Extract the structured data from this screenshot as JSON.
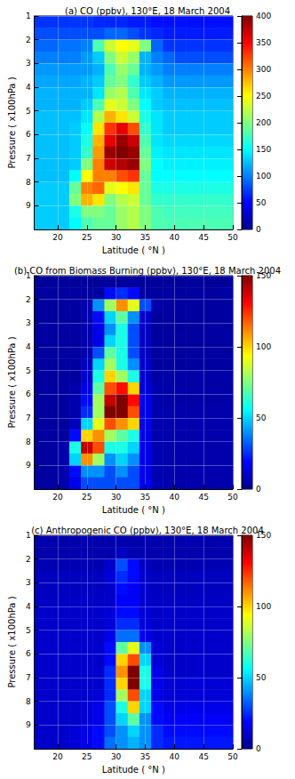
{
  "chart_data": [
    {
      "type": "heatmap",
      "title": "(a) CO (ppbv), 130°E, 18 March 2004",
      "x_label": "Latitude ( °N )",
      "y_label": "Pressure ( x100hPa )",
      "xlim": [
        16,
        50
      ],
      "xticks": [
        20,
        25,
        30,
        35,
        40,
        45,
        50
      ],
      "ylim": [
        1,
        10
      ],
      "yticks": [
        1,
        2,
        3,
        4,
        5,
        6,
        7,
        8,
        9
      ],
      "grid": true,
      "x_edges": [
        16,
        18,
        20,
        22,
        24,
        26,
        28,
        30,
        32,
        34,
        36,
        38,
        40,
        42,
        44,
        46,
        48,
        50
      ],
      "y_edges": [
        1,
        1.5,
        2,
        2.5,
        3,
        3.5,
        4,
        4.5,
        5,
        5.5,
        6,
        6.5,
        7,
        7.5,
        8,
        8.5,
        9,
        9.5,
        10
      ],
      "cells": [
        [
          70,
          70,
          70,
          70,
          70,
          65,
          65,
          65,
          60,
          60,
          55,
          55,
          55,
          55,
          55,
          55,
          55
        ],
        [
          80,
          80,
          80,
          80,
          80,
          80,
          90,
          90,
          80,
          70,
          65,
          60,
          60,
          60,
          60,
          60,
          60
        ],
        [
          90,
          90,
          95,
          95,
          100,
          180,
          230,
          250,
          240,
          200,
          90,
          70,
          70,
          70,
          70,
          70,
          70
        ],
        [
          100,
          100,
          100,
          100,
          110,
          130,
          200,
          230,
          210,
          120,
          100,
          90,
          80,
          80,
          80,
          80,
          80
        ],
        [
          110,
          110,
          110,
          110,
          110,
          120,
          180,
          210,
          190,
          120,
          110,
          100,
          100,
          100,
          100,
          100,
          100
        ],
        [
          115,
          115,
          115,
          115,
          120,
          130,
          190,
          200,
          170,
          130,
          120,
          110,
          110,
          110,
          110,
          110,
          110
        ],
        [
          120,
          120,
          120,
          120,
          120,
          140,
          210,
          220,
          180,
          140,
          130,
          120,
          120,
          120,
          120,
          120,
          120
        ],
        [
          120,
          120,
          120,
          120,
          130,
          180,
          240,
          230,
          200,
          150,
          130,
          125,
          125,
          125,
          125,
          125,
          125
        ],
        [
          125,
          125,
          125,
          125,
          140,
          220,
          280,
          260,
          230,
          160,
          140,
          130,
          130,
          130,
          130,
          130,
          130
        ],
        [
          125,
          125,
          125,
          130,
          150,
          260,
          330,
          360,
          320,
          170,
          140,
          130,
          130,
          130,
          130,
          130,
          130
        ],
        [
          125,
          125,
          125,
          130,
          160,
          280,
          360,
          390,
          370,
          180,
          140,
          135,
          135,
          135,
          135,
          135,
          135
        ],
        [
          125,
          125,
          125,
          130,
          170,
          290,
          390,
          400,
          390,
          190,
          145,
          140,
          140,
          140,
          140,
          140,
          140
        ],
        [
          125,
          125,
          125,
          130,
          200,
          300,
          370,
          380,
          390,
          200,
          150,
          145,
          145,
          145,
          145,
          145,
          145
        ],
        [
          125,
          125,
          125,
          150,
          250,
          300,
          300,
          320,
          330,
          190,
          150,
          150,
          150,
          150,
          150,
          150,
          150
        ],
        [
          130,
          130,
          130,
          190,
          300,
          310,
          240,
          250,
          260,
          190,
          160,
          160,
          160,
          160,
          160,
          160,
          160
        ],
        [
          130,
          130,
          130,
          200,
          280,
          260,
          200,
          220,
          230,
          190,
          170,
          170,
          170,
          170,
          170,
          170,
          170
        ],
        [
          130,
          130,
          130,
          160,
          200,
          200,
          190,
          210,
          220,
          200,
          180,
          175,
          175,
          175,
          175,
          175,
          175
        ],
        [
          130,
          130,
          130,
          150,
          180,
          190,
          190,
          210,
          220,
          200,
          180,
          180,
          180,
          180,
          180,
          180,
          180
        ]
      ],
      "colorbar_range": [
        0,
        400
      ],
      "colorbar_ticks": [
        0,
        50,
        100,
        150,
        200,
        250,
        300,
        350,
        400
      ]
    },
    {
      "type": "heatmap",
      "title": "(b) CO from Biomass Burning (ppbv), 130°E, 18 March 2004",
      "x_label": "Latitude ( °N )",
      "y_label": "Pressure ( x100hPa )",
      "xlim": [
        16,
        50
      ],
      "xticks": [
        20,
        25,
        30,
        35,
        40,
        45,
        50
      ],
      "ylim": [
        1,
        10
      ],
      "yticks": [
        1,
        2,
        3,
        4,
        5,
        6,
        7,
        8,
        9
      ],
      "grid": true,
      "x_edges": [
        16,
        18,
        20,
        22,
        24,
        26,
        28,
        30,
        32,
        34,
        36,
        38,
        40,
        42,
        44,
        46,
        48,
        50
      ],
      "y_edges": [
        1,
        1.5,
        2,
        2.5,
        3,
        3.5,
        4,
        4.5,
        5,
        5.5,
        6,
        6.5,
        7,
        7.5,
        8,
        8.5,
        9,
        9.5,
        10
      ],
      "cells": [
        [
          2,
          2,
          2,
          2,
          2,
          2,
          2,
          2,
          2,
          2,
          2,
          2,
          2,
          2,
          2,
          2,
          2
        ],
        [
          3,
          3,
          3,
          3,
          3,
          3,
          20,
          25,
          20,
          3,
          3,
          3,
          3,
          3,
          3,
          3,
          3
        ],
        [
          3,
          3,
          3,
          3,
          5,
          40,
          80,
          110,
          90,
          30,
          5,
          3,
          3,
          3,
          3,
          3,
          3
        ],
        [
          3,
          3,
          3,
          3,
          5,
          20,
          50,
          70,
          40,
          10,
          3,
          3,
          3,
          3,
          3,
          3,
          3
        ],
        [
          3,
          3,
          3,
          3,
          5,
          15,
          40,
          60,
          30,
          8,
          3,
          3,
          3,
          3,
          3,
          3,
          3
        ],
        [
          3,
          3,
          3,
          3,
          5,
          15,
          50,
          60,
          30,
          8,
          3,
          3,
          3,
          3,
          3,
          3,
          3
        ],
        [
          3,
          3,
          3,
          3,
          5,
          30,
          70,
          60,
          30,
          8,
          3,
          3,
          3,
          3,
          3,
          3,
          3
        ],
        [
          3,
          3,
          3,
          3,
          8,
          50,
          80,
          60,
          40,
          10,
          3,
          3,
          3,
          3,
          3,
          3,
          3
        ],
        [
          3,
          3,
          3,
          3,
          10,
          60,
          100,
          80,
          60,
          10,
          4,
          4,
          4,
          4,
          4,
          4,
          4
        ],
        [
          3,
          3,
          3,
          5,
          15,
          70,
          120,
          130,
          100,
          12,
          5,
          4,
          4,
          4,
          4,
          4,
          4
        ],
        [
          3,
          3,
          3,
          5,
          20,
          80,
          140,
          150,
          130,
          15,
          5,
          4,
          4,
          4,
          4,
          4,
          4
        ],
        [
          3,
          3,
          3,
          5,
          25,
          80,
          150,
          150,
          120,
          15,
          5,
          5,
          5,
          5,
          5,
          5,
          5
        ],
        [
          3,
          3,
          3,
          8,
          50,
          90,
          120,
          110,
          100,
          15,
          5,
          5,
          5,
          5,
          5,
          5,
          5
        ],
        [
          3,
          3,
          3,
          20,
          100,
          110,
          80,
          70,
          60,
          15,
          5,
          5,
          5,
          5,
          5,
          5,
          5
        ],
        [
          3,
          3,
          5,
          60,
          140,
          120,
          60,
          60,
          50,
          15,
          6,
          5,
          5,
          5,
          5,
          5,
          5
        ],
        [
          3,
          3,
          5,
          50,
          110,
          80,
          40,
          50,
          40,
          15,
          6,
          5,
          5,
          5,
          5,
          5,
          5
        ],
        [
          3,
          3,
          5,
          20,
          40,
          40,
          30,
          40,
          30,
          15,
          6,
          5,
          5,
          5,
          5,
          5,
          5
        ],
        [
          3,
          3,
          5,
          15,
          30,
          30,
          30,
          30,
          30,
          15,
          6,
          5,
          5,
          5,
          5,
          5,
          5
        ]
      ],
      "colorbar_range": [
        0,
        150
      ],
      "colorbar_ticks": [
        0,
        50,
        100,
        150
      ]
    },
    {
      "type": "heatmap",
      "title": "(c) Anthropogenic CO (ppbv), 130°E, 18 March 2004",
      "x_label": "Latitude ( °N )",
      "y_label": "Pressure ( x100hPa )",
      "xlim": [
        16,
        50
      ],
      "xticks": [
        20,
        25,
        30,
        35,
        40,
        45,
        50
      ],
      "ylim": [
        1,
        10
      ],
      "yticks": [
        1,
        2,
        3,
        4,
        5,
        6,
        7,
        8,
        9
      ],
      "grid": true,
      "x_edges": [
        16,
        18,
        20,
        22,
        24,
        26,
        28,
        30,
        32,
        34,
        36,
        38,
        40,
        42,
        44,
        46,
        48,
        50
      ],
      "y_edges": [
        1,
        1.5,
        2,
        2.5,
        3,
        3.5,
        4,
        4.5,
        5,
        5.5,
        6,
        6.5,
        7,
        7.5,
        8,
        8.5,
        9,
        9.5,
        10
      ],
      "cells": [
        [
          5,
          5,
          5,
          5,
          5,
          5,
          5,
          5,
          5,
          5,
          5,
          5,
          5,
          5,
          5,
          5,
          5
        ],
        [
          5,
          5,
          5,
          5,
          5,
          5,
          5,
          8,
          6,
          5,
          5,
          5,
          5,
          5,
          5,
          5,
          5
        ],
        [
          6,
          6,
          6,
          6,
          6,
          6,
          10,
          30,
          20,
          8,
          6,
          6,
          6,
          6,
          6,
          6,
          6
        ],
        [
          8,
          8,
          8,
          8,
          8,
          8,
          12,
          25,
          20,
          10,
          8,
          8,
          8,
          8,
          8,
          8,
          8
        ],
        [
          8,
          8,
          8,
          8,
          8,
          8,
          10,
          20,
          18,
          10,
          8,
          8,
          8,
          8,
          8,
          8,
          8
        ],
        [
          9,
          9,
          9,
          9,
          9,
          9,
          10,
          18,
          18,
          10,
          9,
          9,
          9,
          9,
          9,
          9,
          9
        ],
        [
          10,
          10,
          10,
          10,
          10,
          10,
          12,
          20,
          20,
          12,
          10,
          10,
          10,
          10,
          10,
          10,
          10
        ],
        [
          10,
          10,
          10,
          10,
          10,
          10,
          12,
          25,
          25,
          12,
          10,
          10,
          10,
          10,
          10,
          10,
          10
        ],
        [
          10,
          10,
          10,
          10,
          10,
          10,
          15,
          35,
          35,
          15,
          10,
          10,
          10,
          10,
          10,
          10,
          10
        ],
        [
          10,
          10,
          10,
          10,
          10,
          10,
          20,
          70,
          90,
          40,
          12,
          10,
          10,
          10,
          10,
          10,
          10
        ],
        [
          10,
          10,
          10,
          10,
          10,
          10,
          20,
          100,
          120,
          50,
          12,
          10,
          10,
          10,
          10,
          10,
          10
        ],
        [
          10,
          10,
          10,
          10,
          10,
          10,
          25,
          110,
          150,
          60,
          15,
          10,
          10,
          10,
          10,
          10,
          10
        ],
        [
          10,
          10,
          10,
          10,
          10,
          10,
          25,
          100,
          150,
          60,
          15,
          12,
          12,
          12,
          12,
          12,
          12
        ],
        [
          10,
          10,
          10,
          10,
          10,
          12,
          25,
          80,
          120,
          50,
          15,
          12,
          12,
          12,
          12,
          12,
          12
        ],
        [
          10,
          10,
          10,
          10,
          12,
          15,
          30,
          60,
          100,
          50,
          20,
          15,
          15,
          15,
          15,
          15,
          15
        ],
        [
          10,
          10,
          10,
          10,
          12,
          15,
          30,
          50,
          70,
          40,
          20,
          18,
          18,
          18,
          18,
          18,
          18
        ],
        [
          10,
          10,
          10,
          12,
          15,
          20,
          30,
          40,
          50,
          40,
          25,
          20,
          20,
          20,
          20,
          20,
          20
        ],
        [
          10,
          10,
          10,
          12,
          15,
          20,
          35,
          40,
          45,
          40,
          25,
          22,
          22,
          22,
          22,
          22,
          22
        ]
      ],
      "colorbar_range": [
        0,
        150
      ],
      "colorbar_ticks": [
        0,
        50,
        100,
        150
      ]
    }
  ]
}
